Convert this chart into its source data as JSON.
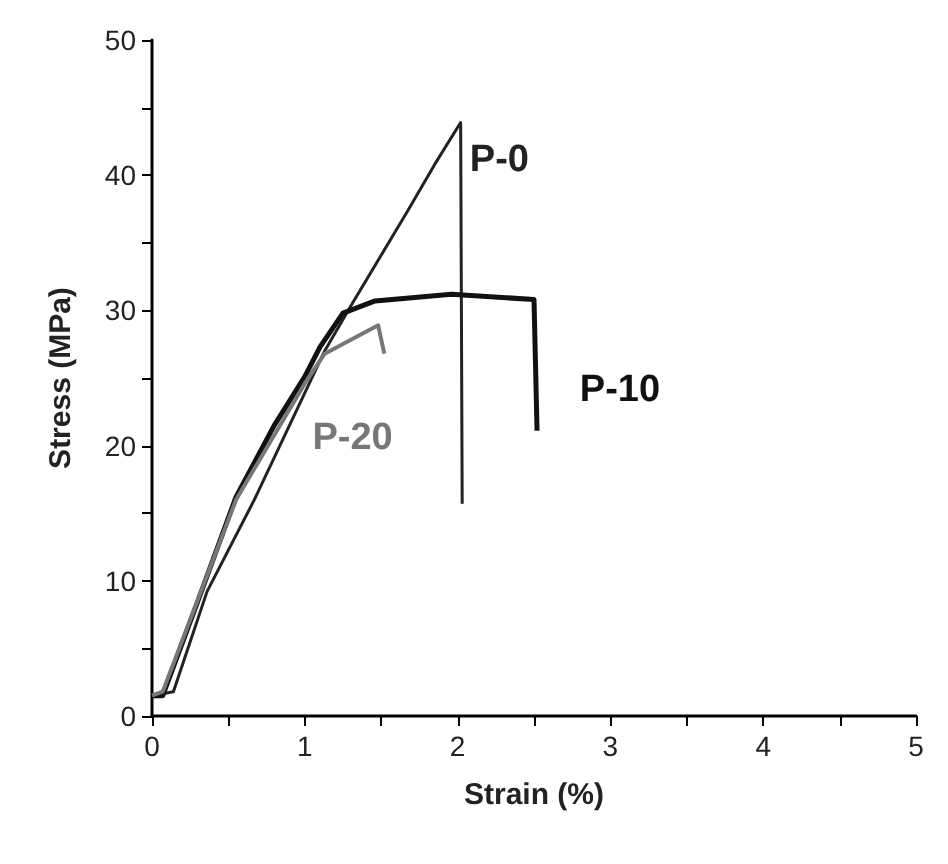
{
  "chart_data": {
    "type": "line",
    "xlabel": "Strain (%)",
    "ylabel": "Stress (MPa)",
    "xlim": [
      0,
      5
    ],
    "ylim": [
      0,
      50
    ],
    "xticks": [
      0,
      {
        "value": 0.5,
        "label": null
      },
      1,
      {
        "value": 1.5,
        "label": null
      },
      2,
      {
        "value": 2.5,
        "label": null
      },
      3,
      {
        "value": 3.5,
        "label": null
      },
      4,
      {
        "value": 4.5,
        "label": null
      },
      5
    ],
    "yticks": [
      0,
      {
        "value": 5,
        "label": null
      },
      10,
      {
        "value": 15,
        "label": null
      },
      20,
      {
        "value": 25,
        "label": null
      },
      30,
      {
        "value": 35,
        "label": null
      },
      40,
      {
        "value": 45,
        "label": null
      },
      50
    ],
    "grid": false,
    "legend": false,
    "marker": "none",
    "line_style": "solid",
    "series": [
      {
        "name": "P-0",
        "color": "#222222",
        "x": [
          0,
          0.14,
          0.36,
          0.67,
          1.13,
          1.3,
          1.67,
          1.85,
          2.02,
          2.03
        ],
        "values": [
          1.5,
          1.8,
          9.2,
          16,
          27,
          30.3,
          37.3,
          40.8,
          43.9,
          15.7
        ]
      },
      {
        "name": "P-10",
        "color": "#111111",
        "x": [
          0,
          0.07,
          0.3,
          0.55,
          0.8,
          1.0,
          1.1,
          1.25,
          1.46,
          1.96,
          2.5,
          2.52
        ],
        "values": [
          1.5,
          1.5,
          8.5,
          16.2,
          21.5,
          25.1,
          27.3,
          29.8,
          30.7,
          31.2,
          30.8,
          21.1
        ]
      },
      {
        "name": "P-20",
        "color": "#777777",
        "x": [
          0,
          0.07,
          0.55,
          1.0,
          1.13,
          1.48,
          1.52
        ],
        "values": [
          1.5,
          1.8,
          16,
          24.6,
          26.8,
          28.9,
          26.8
        ]
      }
    ]
  }
}
